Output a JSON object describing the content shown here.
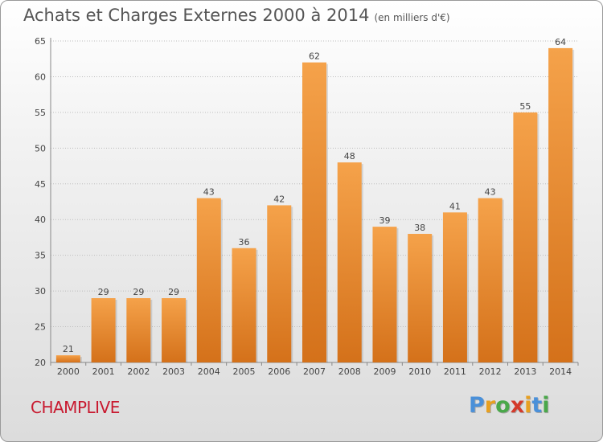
{
  "header": {
    "title": "Achats et Charges Externes 2000 à 2014",
    "unit": "(en milliers d'€)"
  },
  "footer": {
    "city": "CHAMPLIVE",
    "logo_letters": [
      "P",
      "r",
      "o",
      "x",
      "i",
      "t",
      "i"
    ]
  },
  "colors": {
    "bar_light": "#f5a24a",
    "bar_dark": "#d4711a",
    "city": "#c8192f",
    "logo": [
      "#4a90d9",
      "#e8a020",
      "#4aa84a",
      "#d43a2a",
      "#e8a020",
      "#4a90d9",
      "#4aa84a"
    ]
  },
  "chart_data": {
    "type": "bar",
    "title": "Achats et Charges Externes 2000 à 2014",
    "categories": [
      "2000",
      "2001",
      "2002",
      "2003",
      "2004",
      "2005",
      "2006",
      "2007",
      "2008",
      "2009",
      "2010",
      "2011",
      "2012",
      "2013",
      "2014"
    ],
    "values": [
      21,
      29,
      29,
      29,
      43,
      36,
      42,
      62,
      48,
      39,
      38,
      41,
      43,
      55,
      64
    ],
    "ylim": [
      20,
      65
    ],
    "yticks": [
      20,
      25,
      30,
      35,
      40,
      45,
      50,
      55,
      60,
      65
    ],
    "grid": true,
    "xlabel": "",
    "ylabel": ""
  }
}
